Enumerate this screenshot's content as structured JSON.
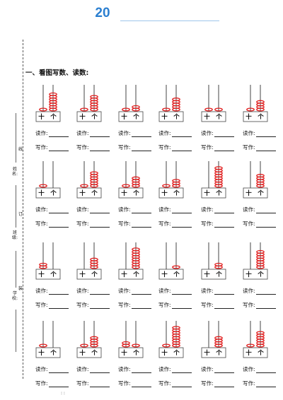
{
  "page": {
    "page_number": "20",
    "section_title": "一、看图写数、读数:",
    "binding_labels": [
      "姓名:",
      "线",
      "订",
      "班级:",
      "装",
      "学校:"
    ],
    "bottom_marks": ": :"
  },
  "abacus_labels": {
    "tens": "十",
    "ones": "个"
  },
  "answer_labels": {
    "read": "读作:",
    "write": "写作:"
  },
  "bead_color": "#e02020",
  "rows": [
    [
      {
        "tens": 1,
        "ones": 7
      },
      {
        "tens": 1,
        "ones": 6
      },
      {
        "tens": 1,
        "ones": 2
      },
      {
        "tens": 1,
        "ones": 5
      },
      {
        "tens": 1,
        "ones": 1
      },
      {
        "tens": 1,
        "ones": 4
      }
    ],
    [
      {
        "tens": 1,
        "ones": 0
      },
      {
        "tens": 1,
        "ones": 6
      },
      {
        "tens": 1,
        "ones": 4
      },
      {
        "tens": 1,
        "ones": 3
      },
      {
        "tens": 0,
        "ones": 8
      },
      {
        "tens": 0,
        "ones": 5
      }
    ],
    [
      {
        "tens": 2,
        "ones": 0
      },
      {
        "tens": 0,
        "ones": 4
      },
      {
        "tens": 0,
        "ones": 8
      },
      {
        "tens": 0,
        "ones": 1
      },
      {
        "tens": 0,
        "ones": 2
      },
      {
        "tens": 0,
        "ones": 7
      }
    ],
    [
      {
        "tens": 1,
        "ones": 0
      },
      {
        "tens": 1,
        "ones": 4
      },
      {
        "tens": 2,
        "ones": 1
      },
      {
        "tens": 1,
        "ones": 8
      },
      {
        "tens": 0,
        "ones": 4
      },
      {
        "tens": 1,
        "ones": 6
      }
    ]
  ]
}
